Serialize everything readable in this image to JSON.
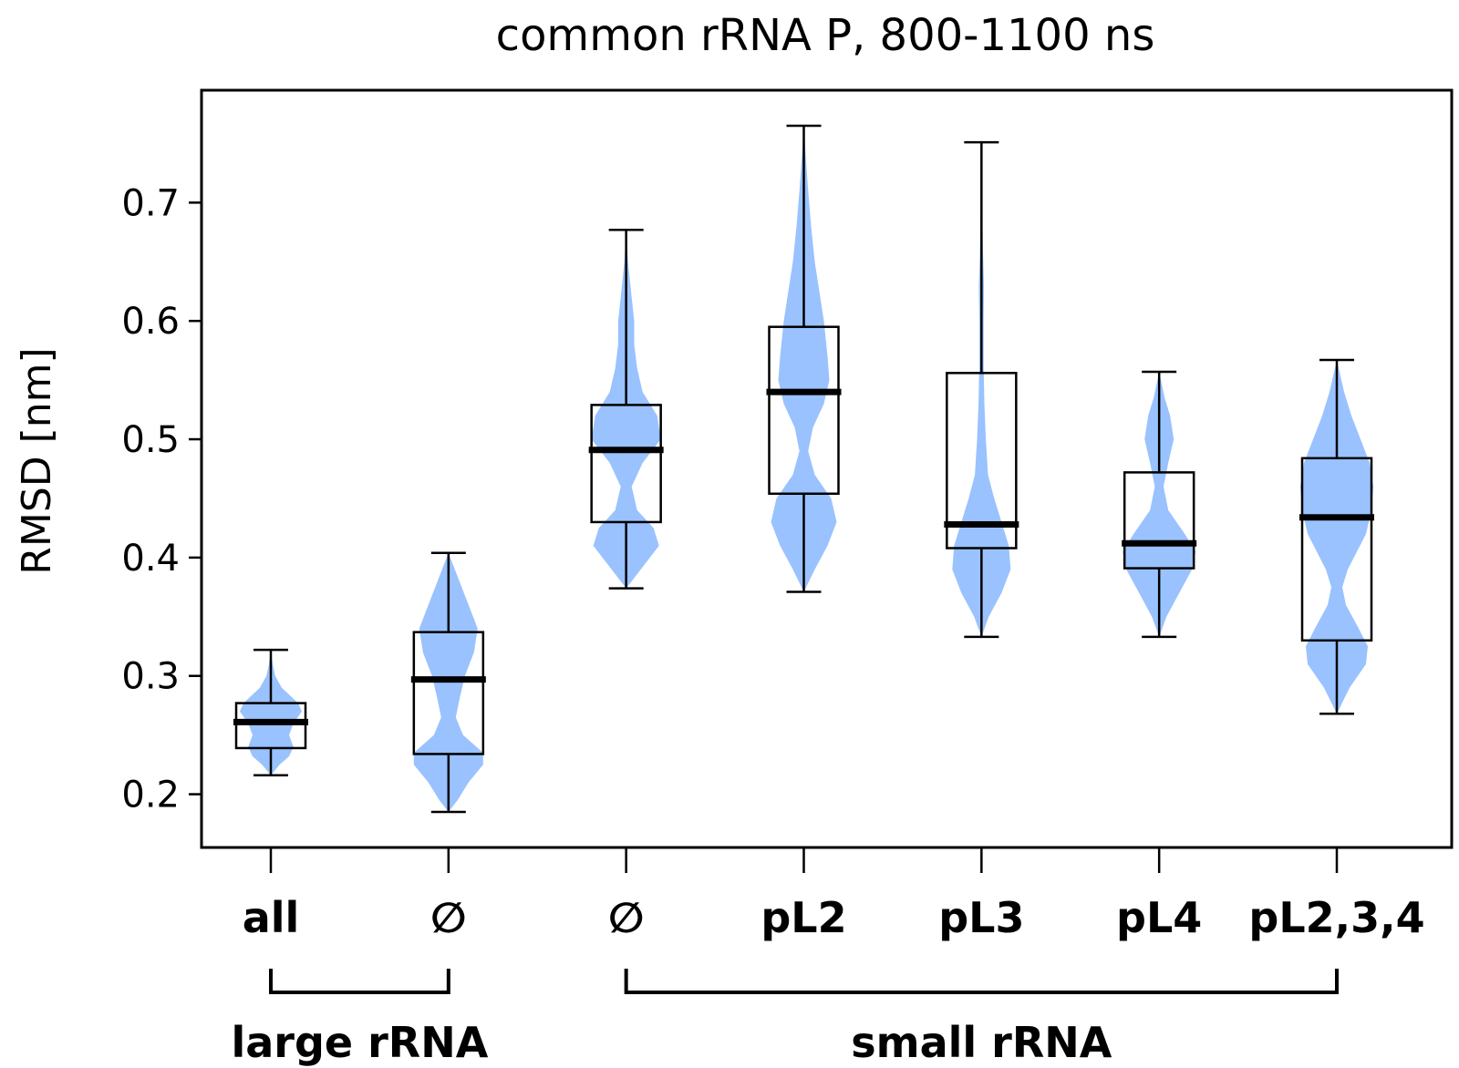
{
  "chart_data": {
    "type": "violin+box",
    "title": "common rRNA P, 800-1100 ns",
    "ylabel": "RMSD [nm]",
    "xlabel": "",
    "ylim": [
      0.155,
      0.795
    ],
    "yticks": [
      0.2,
      0.3,
      0.4,
      0.5,
      0.6,
      0.7
    ],
    "ytick_labels": [
      "0.2",
      "0.3",
      "0.4",
      "0.5",
      "0.6",
      "0.7"
    ],
    "grid": false,
    "violin_color": "#99c2ff",
    "categories": [
      "all",
      "∅",
      "∅",
      "pL2",
      "pL3",
      "pL4",
      "pL2,3,4"
    ],
    "groups": [
      {
        "label": "large rRNA",
        "members": [
          0,
          1
        ]
      },
      {
        "label": "small rRNA",
        "members": [
          2,
          3,
          4,
          5,
          6
        ]
      }
    ],
    "boxes": [
      {
        "min": 0.216,
        "q1": 0.239,
        "median": 0.261,
        "q3": 0.277,
        "max": 0.322
      },
      {
        "min": 0.185,
        "q1": 0.234,
        "median": 0.297,
        "q3": 0.337,
        "max": 0.404
      },
      {
        "min": 0.374,
        "q1": 0.43,
        "median": 0.491,
        "q3": 0.529,
        "max": 0.677
      },
      {
        "min": 0.371,
        "q1": 0.454,
        "median": 0.54,
        "q3": 0.595,
        "max": 0.765
      },
      {
        "min": 0.333,
        "q1": 0.408,
        "median": 0.428,
        "q3": 0.556,
        "max": 0.751
      },
      {
        "min": 0.333,
        "q1": 0.391,
        "median": 0.412,
        "q3": 0.472,
        "max": 0.557
      },
      {
        "min": 0.268,
        "q1": 0.33,
        "median": 0.434,
        "q3": 0.484,
        "max": 0.567
      }
    ],
    "violins": [
      {
        "profile": [
          [
            0.216,
            0.0
          ],
          [
            0.225,
            0.24
          ],
          [
            0.232,
            0.5
          ],
          [
            0.24,
            0.62
          ],
          [
            0.25,
            0.5
          ],
          [
            0.26,
            0.62
          ],
          [
            0.27,
            0.85
          ],
          [
            0.277,
            0.75
          ],
          [
            0.29,
            0.3
          ],
          [
            0.3,
            0.12
          ],
          [
            0.31,
            0.05
          ],
          [
            0.322,
            0.0
          ]
        ]
      },
      {
        "profile": [
          [
            0.185,
            0.0
          ],
          [
            0.195,
            0.25
          ],
          [
            0.21,
            0.55
          ],
          [
            0.225,
            0.95
          ],
          [
            0.235,
            0.95
          ],
          [
            0.25,
            0.4
          ],
          [
            0.265,
            0.2
          ],
          [
            0.28,
            0.3
          ],
          [
            0.3,
            0.45
          ],
          [
            0.32,
            0.7
          ],
          [
            0.34,
            0.8
          ],
          [
            0.36,
            0.55
          ],
          [
            0.38,
            0.3
          ],
          [
            0.404,
            0.0
          ]
        ]
      },
      {
        "profile": [
          [
            0.374,
            0.0
          ],
          [
            0.39,
            0.4
          ],
          [
            0.41,
            0.9
          ],
          [
            0.425,
            0.75
          ],
          [
            0.44,
            0.3
          ],
          [
            0.46,
            0.15
          ],
          [
            0.48,
            0.45
          ],
          [
            0.5,
            0.95
          ],
          [
            0.52,
            0.85
          ],
          [
            0.54,
            0.45
          ],
          [
            0.56,
            0.3
          ],
          [
            0.58,
            0.22
          ],
          [
            0.6,
            0.22
          ],
          [
            0.62,
            0.15
          ],
          [
            0.65,
            0.05
          ],
          [
            0.677,
            0.0
          ]
        ]
      },
      {
        "profile": [
          [
            0.371,
            0.0
          ],
          [
            0.39,
            0.3
          ],
          [
            0.41,
            0.65
          ],
          [
            0.43,
            0.9
          ],
          [
            0.45,
            0.75
          ],
          [
            0.47,
            0.3
          ],
          [
            0.49,
            0.12
          ],
          [
            0.51,
            0.25
          ],
          [
            0.53,
            0.55
          ],
          [
            0.55,
            0.7
          ],
          [
            0.57,
            0.65
          ],
          [
            0.6,
            0.55
          ],
          [
            0.62,
            0.45
          ],
          [
            0.65,
            0.3
          ],
          [
            0.68,
            0.2
          ],
          [
            0.71,
            0.12
          ],
          [
            0.74,
            0.05
          ],
          [
            0.765,
            0.0
          ]
        ]
      },
      {
        "profile": [
          [
            0.333,
            0.0
          ],
          [
            0.35,
            0.2
          ],
          [
            0.37,
            0.55
          ],
          [
            0.39,
            0.8
          ],
          [
            0.41,
            0.75
          ],
          [
            0.43,
            0.55
          ],
          [
            0.45,
            0.35
          ],
          [
            0.47,
            0.18
          ],
          [
            0.5,
            0.12
          ],
          [
            0.53,
            0.08
          ],
          [
            0.56,
            0.06
          ],
          [
            0.6,
            0.06
          ],
          [
            0.63,
            0.07
          ],
          [
            0.66,
            0.04
          ],
          [
            0.7,
            0.02
          ],
          [
            0.751,
            0.0
          ]
        ]
      },
      {
        "profile": [
          [
            0.333,
            0.0
          ],
          [
            0.35,
            0.2
          ],
          [
            0.37,
            0.55
          ],
          [
            0.39,
            0.9
          ],
          [
            0.405,
            1.0
          ],
          [
            0.42,
            0.7
          ],
          [
            0.44,
            0.25
          ],
          [
            0.46,
            0.12
          ],
          [
            0.48,
            0.25
          ],
          [
            0.5,
            0.4
          ],
          [
            0.52,
            0.3
          ],
          [
            0.535,
            0.15
          ],
          [
            0.557,
            0.0
          ]
        ]
      },
      {
        "profile": [
          [
            0.268,
            0.0
          ],
          [
            0.29,
            0.35
          ],
          [
            0.31,
            0.8
          ],
          [
            0.325,
            0.85
          ],
          [
            0.34,
            0.6
          ],
          [
            0.36,
            0.25
          ],
          [
            0.375,
            0.15
          ],
          [
            0.39,
            0.3
          ],
          [
            0.42,
            0.8
          ],
          [
            0.44,
            0.95
          ],
          [
            0.46,
            1.0
          ],
          [
            0.48,
            0.9
          ],
          [
            0.5,
            0.65
          ],
          [
            0.52,
            0.4
          ],
          [
            0.54,
            0.2
          ],
          [
            0.567,
            0.0
          ]
        ]
      }
    ]
  }
}
